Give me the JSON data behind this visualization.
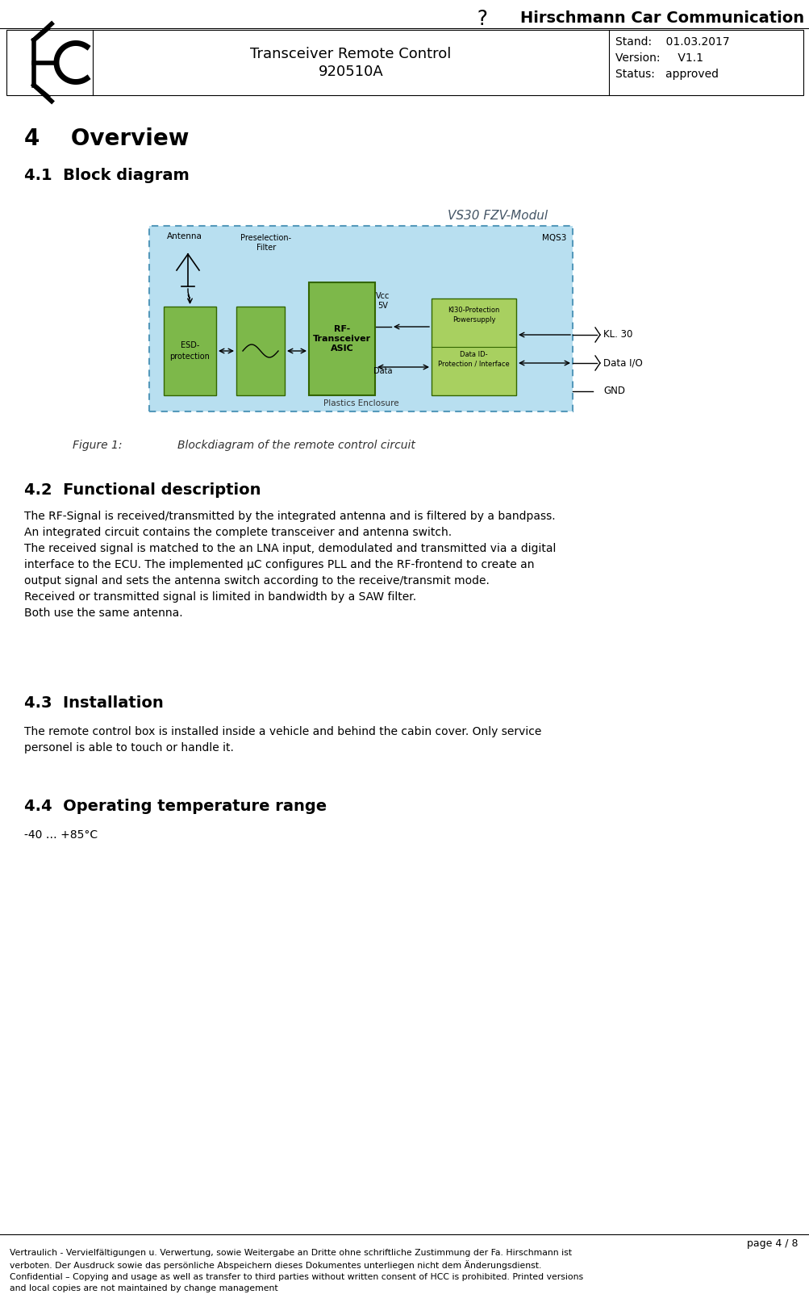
{
  "bg_color": "#ffffff",
  "header_line1": "Transceiver Remote Control",
  "header_line2": "920510A",
  "top_brand": "Hirschmann Car Communication",
  "section4_title": "4    Overview",
  "section41_title": "4.1  Block diagram",
  "figure_caption_label": "Figure 1:",
  "figure_caption_text": "Blockdiagram of the remote control circuit",
  "section42_title": "4.2  Functional description",
  "section42_body": "The RF-Signal is received/transmitted by the integrated antenna and is filtered by a bandpass.\nAn integrated circuit contains the complete transceiver and antenna switch.\nThe received signal is matched to the an LNA input, demodulated and transmitted via a digital\ninterface to the ECU. The implemented μC configures PLL and the RF-frontend to create an\noutput signal and sets the antenna switch according to the receive/transmit mode.\nReceived or transmitted signal is limited in bandwidth by a SAW filter.\nBoth use the same antenna.",
  "section43_title": "4.3  Installation",
  "section43_body": "The remote control box is installed inside a vehicle and behind the cabin cover. Only service\npersonel is able to touch or handle it.",
  "section44_title": "4.4  Operating temperature range",
  "section44_body": "-40 … +85°C",
  "footer_page": "page 4 / 8",
  "footer_text": "Vertraulich - Vervielfältigungen u. Verwertung, sowie Weitergabe an Dritte ohne schriftliche Zustimmung der Fa. Hirschmann ist\nverboten. Der Ausdruck sowie das persönliche Abspeichern dieses Dokumentes unterliegen nicht dem Änderungsdienst.\nConfidential – Copying and usage as well as transfer to third parties without written consent of HCC is prohibited. Printed versions\nand local copies are not maintained by change management",
  "diagram_title": "VS30 FZV-Modul",
  "light_blue": "#b8dff0",
  "green_dark": "#7db84a",
  "green_light": "#a8d060",
  "box_border_dark": "#336600",
  "box_border_blue": "#5599bb",
  "diag_title_color": "#445566",
  "stand_text": "Stand:    01.03.2017",
  "version_text": "Version:     V1.1",
  "status_text": "Status:   approved"
}
